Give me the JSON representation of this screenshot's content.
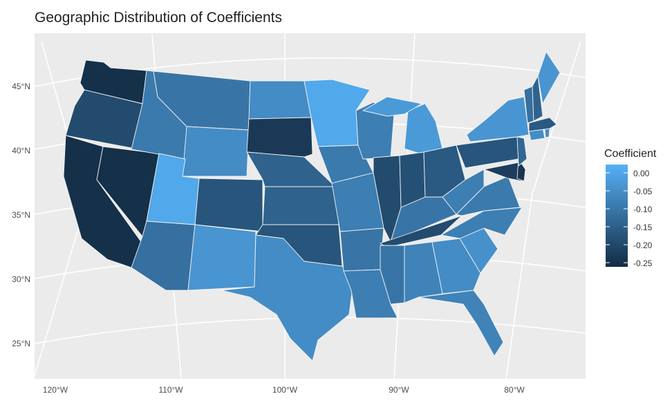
{
  "title": "Geographic Distribution of Coefficients",
  "map": {
    "x_ticks": [
      "120°W",
      "110°W",
      "100°W",
      "90°W",
      "80°W"
    ],
    "y_ticks": [
      "45°N",
      "40°N",
      "35°N",
      "30°N",
      "25°N"
    ],
    "panel_bg": "#ebebeb",
    "grid_color": "#ffffff",
    "state_border": "#f2f2f2"
  },
  "legend": {
    "title": "Coefficient",
    "labels": [
      "0.00",
      "-0.05",
      "-0.10",
      "-0.15",
      "-0.20",
      "-0.25"
    ],
    "color_high": "#56b1f7",
    "color_low": "#132b43",
    "domain": [
      -0.27,
      0.02
    ]
  },
  "states": [
    {
      "name": "Washington",
      "value": -0.26
    },
    {
      "name": "Oregon",
      "value": -0.2
    },
    {
      "name": "California",
      "value": -0.26
    },
    {
      "name": "Nevada",
      "value": -0.26
    },
    {
      "name": "Idaho",
      "value": -0.1
    },
    {
      "name": "Montana",
      "value": -0.11
    },
    {
      "name": "Wyoming",
      "value": -0.06
    },
    {
      "name": "Utah",
      "value": 0.0
    },
    {
      "name": "Arizona",
      "value": -0.12
    },
    {
      "name": "Colorado",
      "value": -0.18
    },
    {
      "name": "New Mexico",
      "value": -0.04
    },
    {
      "name": "North Dakota",
      "value": -0.06
    },
    {
      "name": "South Dakota",
      "value": -0.24
    },
    {
      "name": "Nebraska",
      "value": -0.15
    },
    {
      "name": "Kansas",
      "value": -0.15
    },
    {
      "name": "Oklahoma",
      "value": -0.18
    },
    {
      "name": "Texas",
      "value": -0.06
    },
    {
      "name": "Minnesota",
      "value": 0.0
    },
    {
      "name": "Iowa",
      "value": -0.1
    },
    {
      "name": "Missouri",
      "value": -0.09
    },
    {
      "name": "Arkansas",
      "value": -0.11
    },
    {
      "name": "Louisiana",
      "value": -0.09
    },
    {
      "name": "Wisconsin",
      "value": -0.09
    },
    {
      "name": "Illinois",
      "value": -0.2
    },
    {
      "name": "Michigan",
      "value": -0.03
    },
    {
      "name": "Indiana",
      "value": -0.19
    },
    {
      "name": "Ohio",
      "value": -0.17
    },
    {
      "name": "Kentucky",
      "value": -0.11
    },
    {
      "name": "Tennessee",
      "value": -0.2
    },
    {
      "name": "Mississippi",
      "value": -0.11
    },
    {
      "name": "Alabama",
      "value": -0.08
    },
    {
      "name": "Georgia",
      "value": -0.06
    },
    {
      "name": "Florida",
      "value": -0.08
    },
    {
      "name": "South Carolina",
      "value": -0.05
    },
    {
      "name": "North Carolina",
      "value": -0.09
    },
    {
      "name": "Virginia",
      "value": -0.1
    },
    {
      "name": "West Virginia",
      "value": -0.09
    },
    {
      "name": "Pennsylvania",
      "value": -0.18
    },
    {
      "name": "New York",
      "value": -0.04
    },
    {
      "name": "Maryland",
      "value": -0.23
    },
    {
      "name": "Delaware",
      "value": -0.25
    },
    {
      "name": "New Jersey",
      "value": -0.14
    },
    {
      "name": "Connecticut",
      "value": -0.06
    },
    {
      "name": "Rhode Island",
      "value": -0.06
    },
    {
      "name": "Massachusetts",
      "value": -0.17
    },
    {
      "name": "Vermont",
      "value": -0.12
    },
    {
      "name": "New Hampshire",
      "value": -0.15
    },
    {
      "name": "Maine",
      "value": -0.04
    }
  ]
}
